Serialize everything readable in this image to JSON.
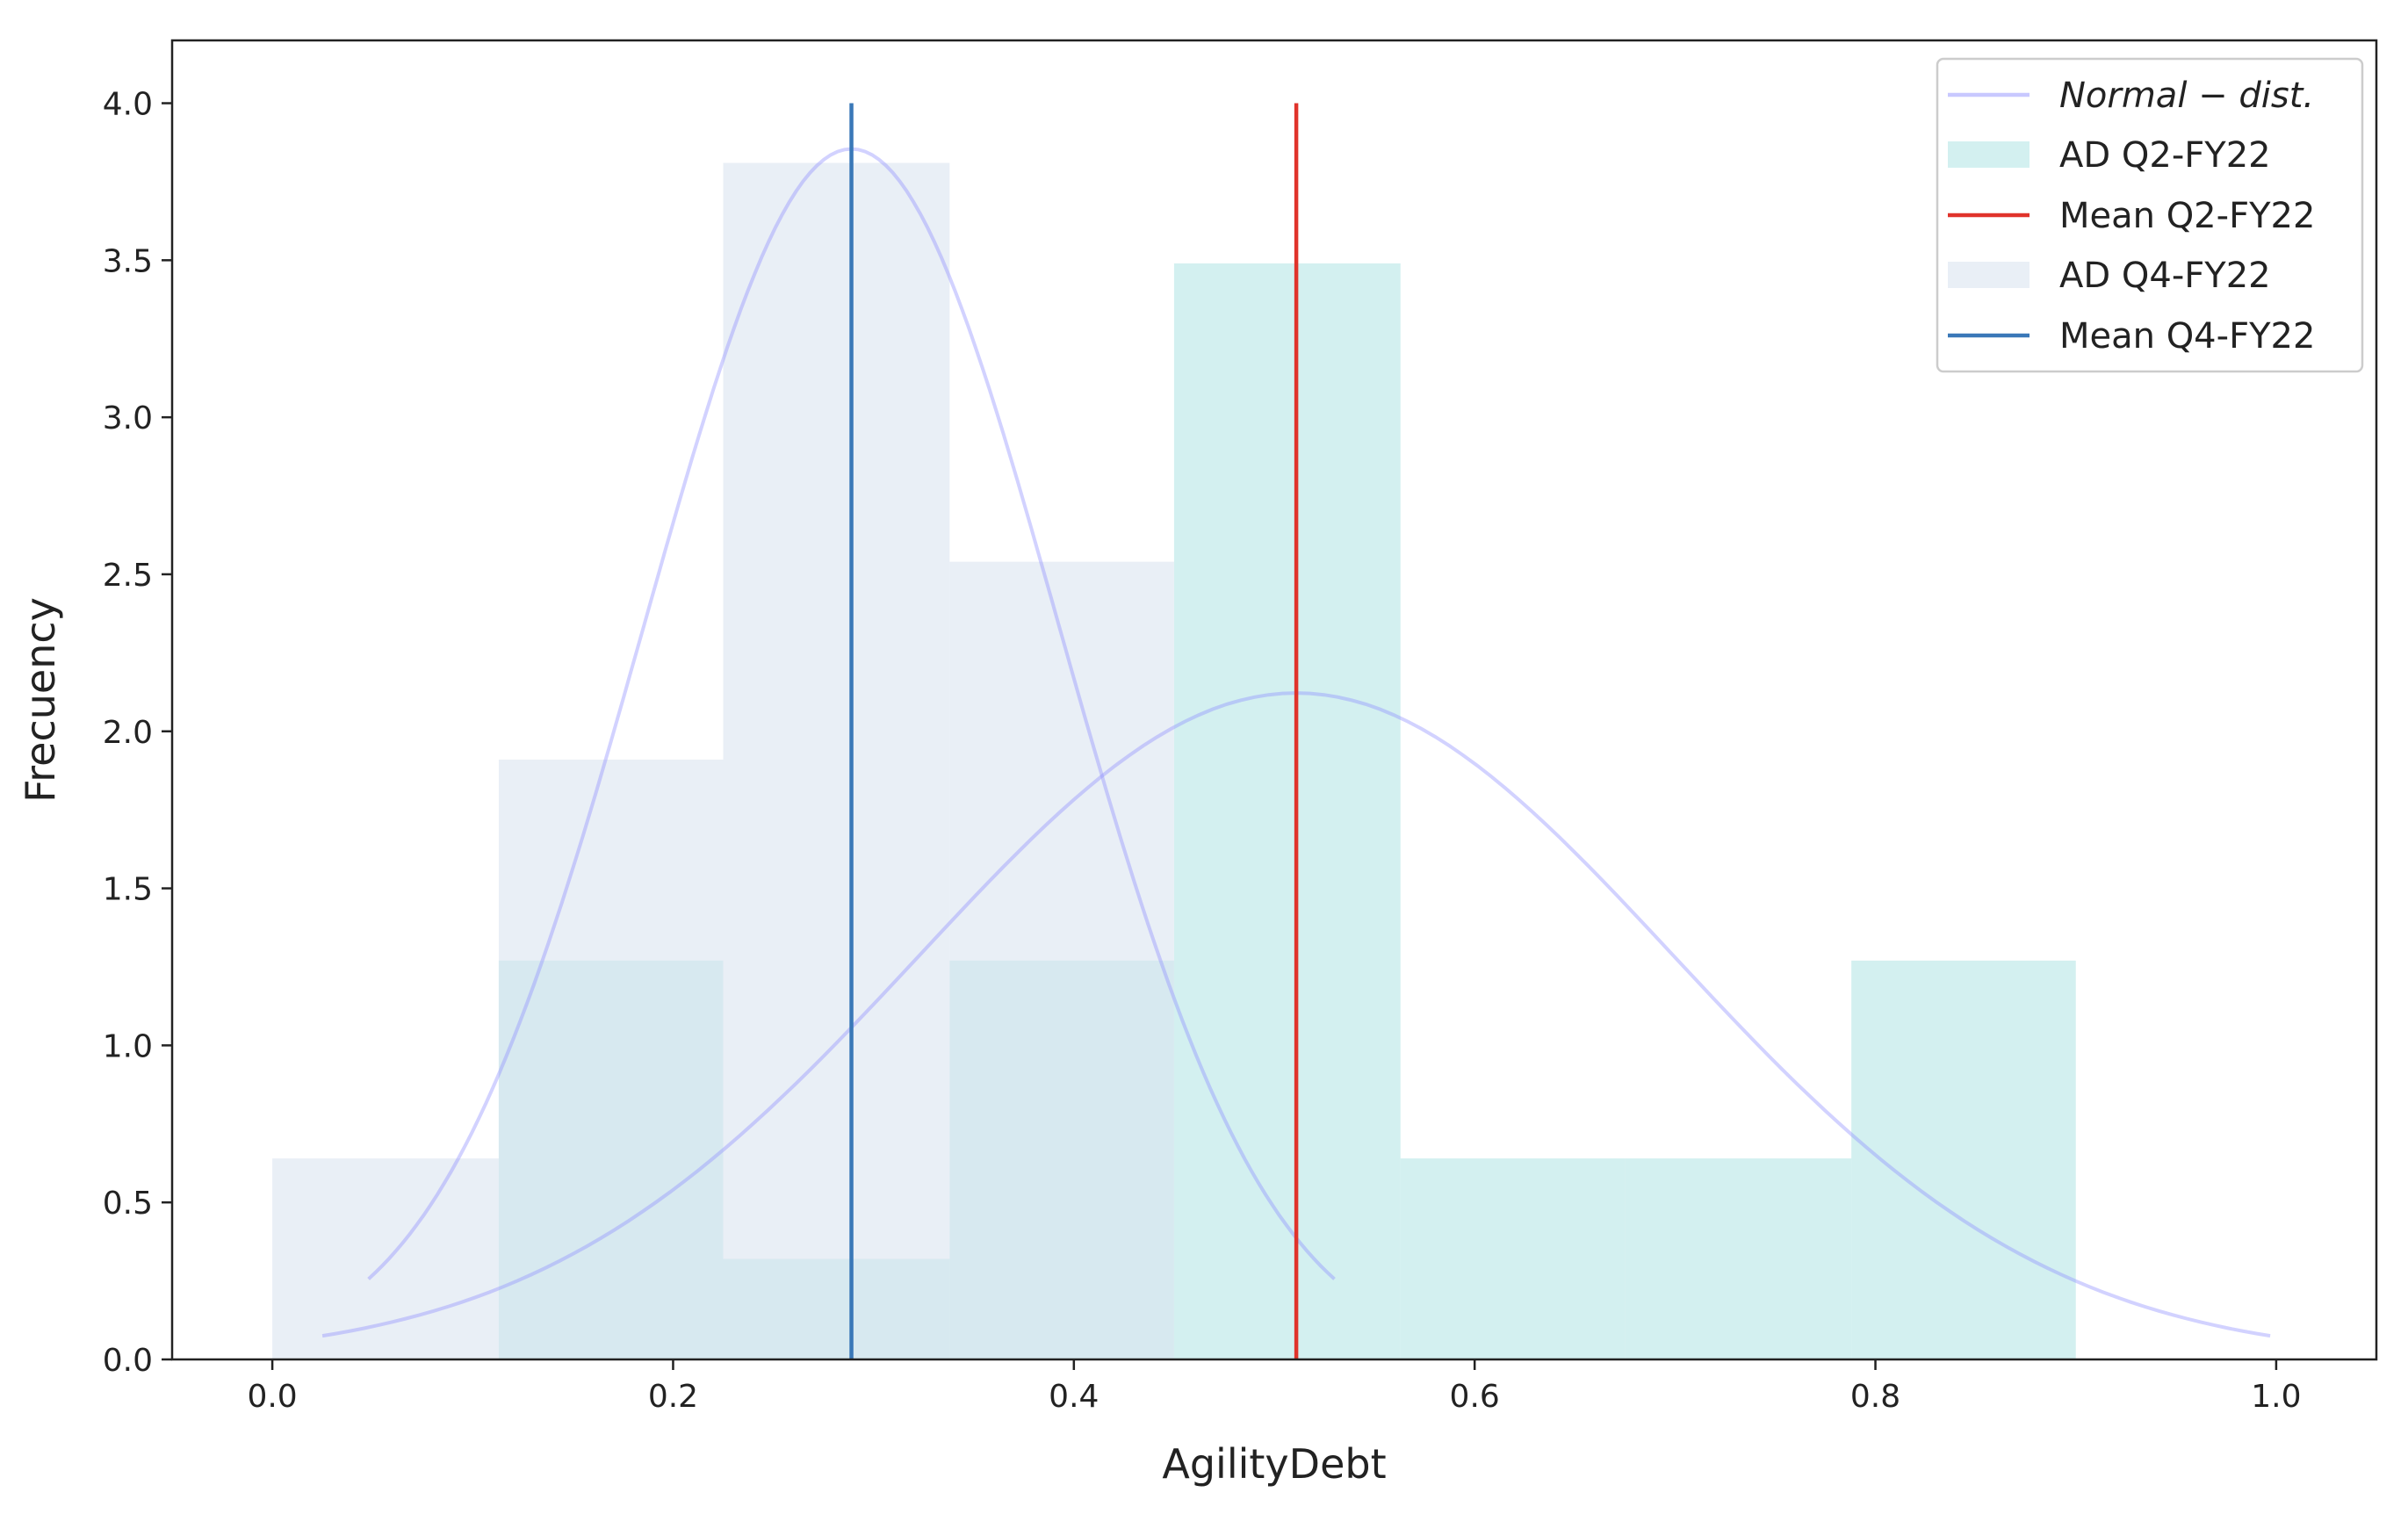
{
  "chart_data": {
    "type": "histogram",
    "title": "",
    "xlabel": "AgilityDebt",
    "ylabel": "Frecuency",
    "xlim": [
      -0.05,
      1.05
    ],
    "ylim": [
      0,
      4.2
    ],
    "xticks": [
      0.0,
      0.2,
      0.4,
      0.6,
      0.8,
      1.0
    ],
    "xtick_labels": [
      "0.0",
      "0.2",
      "0.4",
      "0.6",
      "0.8",
      "1.0"
    ],
    "yticks": [
      0.0,
      0.5,
      1.0,
      1.5,
      2.0,
      2.5,
      3.0,
      3.5,
      4.0
    ],
    "ytick_labels": [
      "0.0",
      "0.5",
      "1.0",
      "1.5",
      "2.0",
      "2.5",
      "3.0",
      "3.5",
      "4.0"
    ],
    "grid": false,
    "legend_position": "top-right",
    "series": [
      {
        "name": "AD Q2-FY22",
        "kind": "histogram",
        "color": "#afe4e4",
        "bins": [
          {
            "x0": 0.113,
            "x1": 0.225,
            "value": 1.27
          },
          {
            "x0": 0.225,
            "x1": 0.338,
            "value": 0.32
          },
          {
            "x0": 0.338,
            "x1": 0.45,
            "value": 1.27
          },
          {
            "x0": 0.45,
            "x1": 0.563,
            "value": 3.49
          },
          {
            "x0": 0.563,
            "x1": 0.675,
            "value": 0.64
          },
          {
            "x0": 0.675,
            "x1": 0.788,
            "value": 0.64
          },
          {
            "x0": 0.788,
            "x1": 0.9,
            "value": 1.27
          }
        ]
      },
      {
        "name": "AD Q4-FY22",
        "kind": "histogram",
        "color": "#dbe5f0",
        "bins": [
          {
            "x0": 0.0,
            "x1": 0.113,
            "value": 0.64
          },
          {
            "x0": 0.113,
            "x1": 0.225,
            "value": 1.91
          },
          {
            "x0": 0.225,
            "x1": 0.338,
            "value": 3.81
          },
          {
            "x0": 0.338,
            "x1": 0.45,
            "value": 2.54
          }
        ]
      },
      {
        "name": "Mean Q2-FY22",
        "kind": "vline",
        "color": "#e0332b",
        "x": 0.511,
        "y": [
          0,
          4.0
        ]
      },
      {
        "name": "Mean Q4-FY22",
        "kind": "vline",
        "color": "#3a78b8",
        "x": 0.289,
        "y": [
          0,
          4.0
        ]
      },
      {
        "name": "Normal-dist.",
        "kind": "normal_curve",
        "color": "#8f8fff",
        "mean": 0.511,
        "std": 0.188,
        "x_range": [
          0.025,
          0.997
        ]
      },
      {
        "kind": "normal_curve",
        "color": "#8f8fff",
        "mean": 0.289,
        "std": 0.1035,
        "x_range": [
          0.048,
          0.53
        ]
      }
    ]
  },
  "legend": {
    "items": [
      {
        "label_main": "Normal",
        "label_dash": " − ",
        "label_tail": "dist.",
        "swatch": "line",
        "color": "#c8c8ff"
      },
      {
        "label": "AD Q2-FY22",
        "swatch": "patch",
        "color": "#afe4e4"
      },
      {
        "label": "Mean Q2-FY22",
        "swatch": "line",
        "color": "#e0332b"
      },
      {
        "label": "AD Q4-FY22",
        "swatch": "patch",
        "color": "#dbe5f0"
      },
      {
        "label": "Mean Q4-FY22",
        "swatch": "line",
        "color": "#3a78b8"
      }
    ]
  }
}
